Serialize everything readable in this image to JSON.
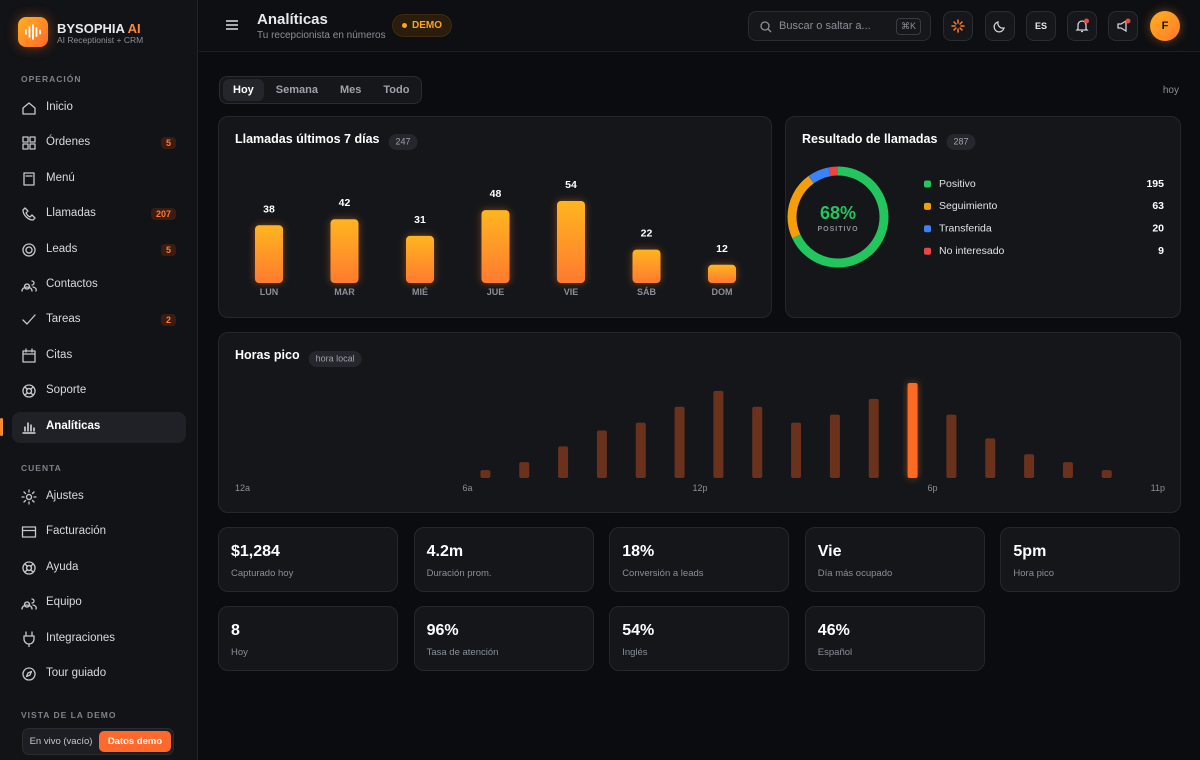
{
  "brand": {
    "name": "BYSOPHIA",
    "accent": "AI",
    "tagline": "AI Receptionist + CRM"
  },
  "sidebar": {
    "sections": [
      {
        "title": "OPERACIÓN",
        "items": [
          {
            "label": "Inicio"
          },
          {
            "label": "Órdenes",
            "badge": 5
          },
          {
            "label": "Menú"
          },
          {
            "label": "Llamadas",
            "badge": 207
          },
          {
            "label": "Leads",
            "badge": 5
          },
          {
            "label": "Contactos"
          },
          {
            "label": "Tareas",
            "badge": 2
          },
          {
            "label": "Citas"
          },
          {
            "label": "Soporte"
          },
          {
            "label": "Analíticas",
            "active": true
          }
        ]
      },
      {
        "title": "CUENTA",
        "items": [
          {
            "label": "Ajustes"
          },
          {
            "label": "Facturación"
          },
          {
            "label": "Ayuda"
          },
          {
            "label": "Equipo"
          },
          {
            "label": "Integraciones"
          },
          {
            "label": "Tour guiado"
          }
        ]
      }
    ]
  },
  "demo_view": {
    "title": "VISTA DE LA DEMO",
    "options": [
      "En vivo (vacío)",
      "Datos demo"
    ],
    "selected": 1
  },
  "header": {
    "title": "Analíticas",
    "subtitle": "Tu recepcionista en números",
    "badge": "DEMO",
    "search_placeholder": "Buscar o saltar a...",
    "shortcut": "⌘K",
    "language": "ES",
    "avatar": "F"
  },
  "tabs": {
    "items": [
      "Hoy",
      "Semana",
      "Mes",
      "Todo"
    ],
    "selected": 0,
    "range_label": "hoy"
  },
  "calls_chart": {
    "type": "bar",
    "title": "Llamadas últimos 7 días",
    "total": 247,
    "categories": [
      "LUN",
      "MAR",
      "MIÉ",
      "JUE",
      "VIE",
      "SÁB",
      "DOM"
    ],
    "values": [
      38,
      42,
      31,
      48,
      54,
      22,
      12
    ]
  },
  "outcome_chart": {
    "type": "donut",
    "title": "Resultado de llamadas",
    "total": 287,
    "center_value": "68%",
    "center_label": "POSITIVO",
    "series": [
      {
        "name": "Positivo",
        "color": "#22c55e",
        "value": 195
      },
      {
        "name": "Seguimiento",
        "color": "#f59e0b",
        "value": 63
      },
      {
        "name": "Transferida",
        "color": "#3b82f6",
        "value": 20
      },
      {
        "name": "No interesado",
        "color": "#ef4444",
        "value": 9
      }
    ]
  },
  "peak_chart": {
    "type": "bar",
    "title": "Horas pico",
    "badge": "hora local",
    "axis_labels": [
      "12a",
      "6a",
      "12p",
      "6p",
      "11p"
    ],
    "values": [
      0,
      0,
      0,
      0,
      0,
      0,
      1,
      2,
      4,
      6,
      7,
      9,
      11,
      9,
      7,
      8,
      10,
      12,
      8,
      5,
      3,
      2,
      1,
      0
    ]
  },
  "kpis": [
    [
      {
        "value": "$1,284",
        "label": "Capturado hoy"
      },
      {
        "value": "4.2m",
        "label": "Duración prom."
      },
      {
        "value": "18%",
        "label": "Conversión a leads"
      },
      {
        "value": "Vie",
        "label": "Día más ocupado"
      },
      {
        "value": "5pm",
        "label": "Hora pico"
      }
    ],
    [
      {
        "value": "8",
        "label": "Hoy"
      },
      {
        "value": "96%",
        "label": "Tasa de atención"
      },
      {
        "value": "54%",
        "label": "Inglés"
      },
      {
        "value": "46%",
        "label": "Español"
      }
    ]
  ]
}
